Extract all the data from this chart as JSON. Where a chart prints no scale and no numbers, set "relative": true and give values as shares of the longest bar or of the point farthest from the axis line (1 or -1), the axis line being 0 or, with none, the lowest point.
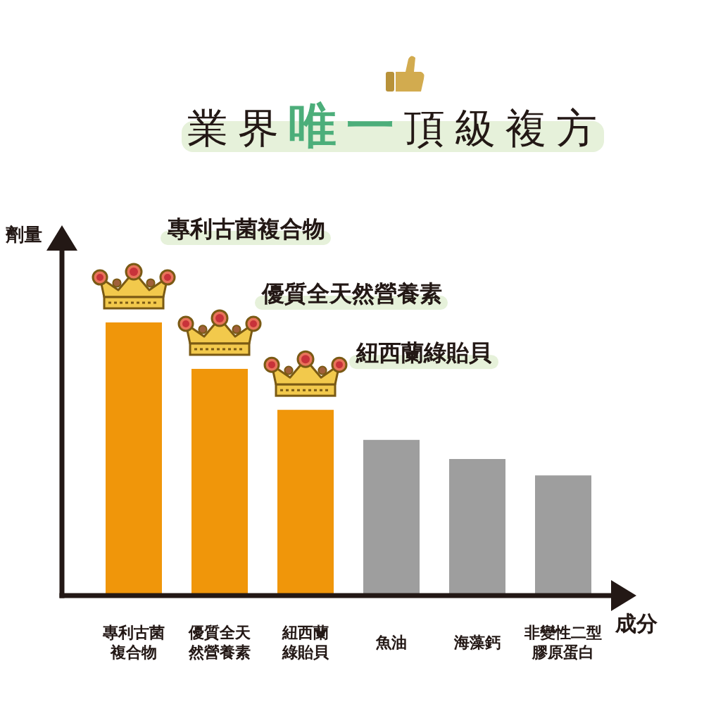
{
  "chart_data": {
    "type": "bar",
    "title": "業界**唯一**頂級複方",
    "ylabel": "劑量",
    "xlabel": "成分",
    "categories": [
      "專利古菌複合物",
      "優質全天然營養素",
      "紐西蘭綠貽貝",
      "魚油",
      "海藻鈣",
      "非變性二型膠原蛋白"
    ],
    "values": [
      1,
      0.83,
      0.68,
      0.57,
      0.5,
      0.44
    ],
    "colors": [
      "#f0960a",
      "#f0960a",
      "#f0960a",
      "#9e9e9e",
      "#9e9e9e",
      "#9e9e9e"
    ],
    "relative": true,
    "annotations": [
      "專利古菌複合物",
      "優質全天然營養素",
      "紐西蘭綠貽貝"
    ]
  }
}
